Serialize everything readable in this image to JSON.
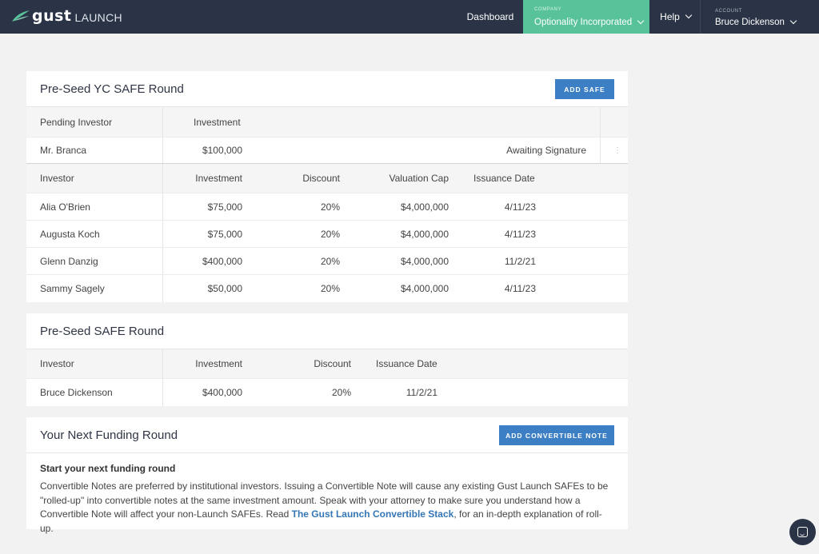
{
  "nav": {
    "brand": "gust",
    "brand_suffix": "LAUNCH",
    "dashboard": "Dashboard",
    "company_caption": "COMPANY",
    "company_name": "Optionality Incorporated",
    "help": "Help",
    "account_caption": "ACCOUNT",
    "account_name": "Bruce Dickenson"
  },
  "yc_round": {
    "title": "Pre-Seed YC SAFE Round",
    "add_button": "ADD SAFE",
    "pending_headers": [
      "Pending Investor",
      "Investment"
    ],
    "pending_rows": [
      {
        "investor": "Mr. Branca",
        "investment": "$100,000",
        "status": "Awaiting Signature"
      }
    ],
    "headers": [
      "Investor",
      "Investment",
      "Discount",
      "Valuation Cap",
      "Issuance Date"
    ],
    "rows": [
      {
        "investor": "Alia O'Brien",
        "investment": "$75,000",
        "discount": "20%",
        "cap": "$4,000,000",
        "date": "4/11/23"
      },
      {
        "investor": "Augusta Koch",
        "investment": "$75,000",
        "discount": "20%",
        "cap": "$4,000,000",
        "date": "4/11/23"
      },
      {
        "investor": "Glenn Danzig",
        "investment": "$400,000",
        "discount": "20%",
        "cap": "$4,000,000",
        "date": "11/2/21"
      },
      {
        "investor": "Sammy Sagely",
        "investment": "$50,000",
        "discount": "20%",
        "cap": "$4,000,000",
        "date": "4/11/23"
      }
    ]
  },
  "safe_round": {
    "title": "Pre-Seed SAFE Round",
    "headers": [
      "Investor",
      "Investment",
      "Discount",
      "Issuance Date"
    ],
    "rows": [
      {
        "investor": "Bruce Dickenson",
        "investment": "$400,000",
        "discount": "20%",
        "date": "11/2/21"
      }
    ]
  },
  "next_round": {
    "title": "Your Next Funding Round",
    "add_button": "ADD CONVERTIBLE NOTE",
    "heading": "Start your next funding round",
    "body_before_link": "Convertible Notes are preferred by institutional investors. Issuing a Convertible Note will cause any existing Gust Launch SAFEs to be \"rolled-up\" into convertible notes at the same investment amount. Speak with your attorney to make sure you understand how a Convertible Note will affect your non-Launch SAFEs. Read ",
    "link_text": "The Gust Launch Convertible Stack",
    "body_after_link": ", for an in-depth explanation of roll-up."
  },
  "icons": {
    "logo": "gust-leaf-logo",
    "chevron": "chevron-down-icon",
    "kebab": "kebab-menu-icon",
    "chat": "chat-icon"
  },
  "colors": {
    "nav_bg": "#2b3446",
    "company_bg": "#58c39a",
    "button_blue": "#3d7fc4",
    "link_blue": "#3576b6"
  }
}
